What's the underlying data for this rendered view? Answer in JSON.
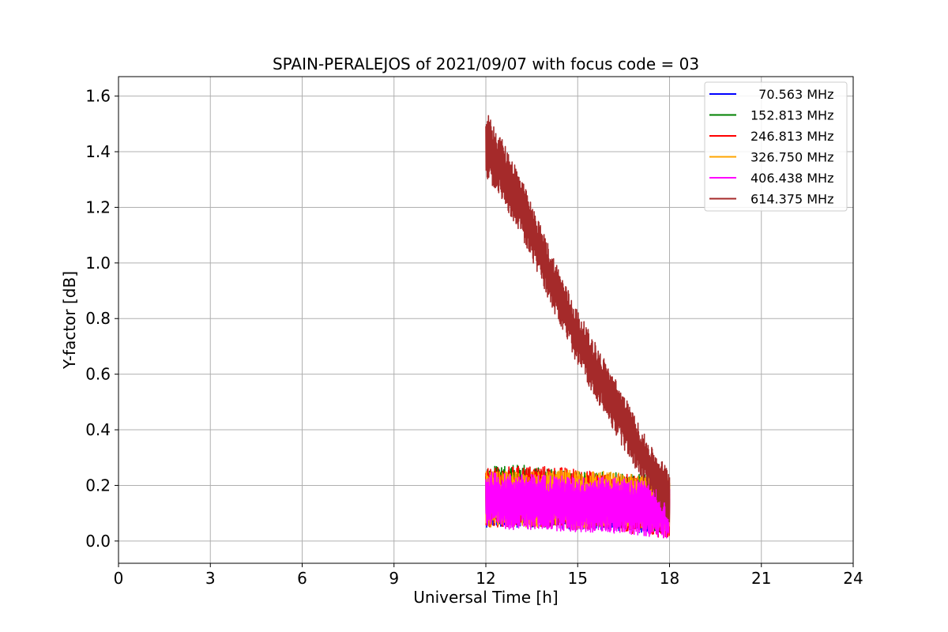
{
  "chart_data": {
    "type": "line",
    "title": "SPAIN-PERALEJOS of 2021/09/07 with focus code = 03",
    "xlabel": "Universal Time [h]",
    "ylabel": "Y-factor [dB]",
    "xlim": [
      0,
      24
    ],
    "ylim": [
      -0.08,
      1.67
    ],
    "xticks": [
      0,
      3,
      6,
      9,
      12,
      15,
      18,
      21,
      24
    ],
    "xtick_labels": [
      "0",
      "3",
      "6",
      "9",
      "12",
      "15",
      "18",
      "21",
      "24"
    ],
    "yticks": [
      0.0,
      0.2,
      0.4,
      0.6,
      0.8,
      1.0,
      1.2,
      1.4,
      1.6
    ],
    "ytick_labels": [
      "0.0",
      "0.2",
      "0.4",
      "0.6",
      "0.8",
      "1.0",
      "1.2",
      "1.4",
      "1.6"
    ],
    "grid": true,
    "legend_position": "top-right",
    "series": [
      {
        "name": "70.563 MHz",
        "legend_label": "  70.563 MHz",
        "color": "#0000ff",
        "x": [
          12.0,
          13.0,
          14.0,
          15.0,
          16.0,
          17.0,
          18.0
        ],
        "mean": [
          0.14,
          0.14,
          0.14,
          0.13,
          0.13,
          0.12,
          0.12
        ],
        "amplitude": [
          0.09,
          0.09,
          0.09,
          0.09,
          0.09,
          0.09,
          0.09
        ]
      },
      {
        "name": "152.813 MHz",
        "legend_label": "152.813 MHz",
        "color": "#008000",
        "x": [
          12.0,
          13.0,
          14.0,
          15.0,
          16.0,
          17.0,
          18.0
        ],
        "mean": [
          0.16,
          0.17,
          0.16,
          0.15,
          0.15,
          0.14,
          0.13
        ],
        "amplitude": [
          0.11,
          0.11,
          0.1,
          0.1,
          0.1,
          0.1,
          0.1
        ]
      },
      {
        "name": "246.813 MHz",
        "legend_label": "246.813 MHz",
        "color": "#ff0000",
        "x": [
          12.0,
          13.0,
          14.0,
          15.0,
          16.0,
          17.0,
          18.0
        ],
        "mean": [
          0.15,
          0.16,
          0.16,
          0.15,
          0.14,
          0.13,
          0.12
        ],
        "amplitude": [
          0.11,
          0.11,
          0.11,
          0.11,
          0.1,
          0.11,
          0.11
        ]
      },
      {
        "name": "326.750 MHz",
        "legend_label": "326.750 MHz",
        "color": "#ffa500",
        "x": [
          12.0,
          13.0,
          14.0,
          15.0,
          16.0,
          17.0,
          18.0
        ],
        "mean": [
          0.15,
          0.15,
          0.15,
          0.15,
          0.15,
          0.14,
          0.13
        ],
        "amplitude": [
          0.1,
          0.1,
          0.1,
          0.11,
          0.1,
          0.1,
          0.1
        ]
      },
      {
        "name": "406.438 MHz",
        "legend_label": "406.438 MHz",
        "color": "#ff00ff",
        "x": [
          12.0,
          13.0,
          14.0,
          15.0,
          16.0,
          17.0,
          18.0
        ],
        "mean": [
          0.15,
          0.14,
          0.14,
          0.13,
          0.13,
          0.12,
          0.11
        ],
        "amplitude": [
          0.1,
          0.1,
          0.1,
          0.1,
          0.1,
          0.1,
          0.1
        ]
      },
      {
        "name": "614.375 MHz",
        "legend_label": "614.375 MHz",
        "color": "#a52a2a",
        "x": [
          12.0,
          12.5,
          13.0,
          13.5,
          14.0,
          14.5,
          15.0,
          15.5,
          16.0,
          16.5,
          17.0,
          17.5,
          18.0
        ],
        "mean": [
          1.43,
          1.34,
          1.24,
          1.11,
          0.98,
          0.85,
          0.73,
          0.63,
          0.53,
          0.43,
          0.33,
          0.24,
          0.16
        ],
        "amplitude": [
          0.12,
          0.11,
          0.11,
          0.1,
          0.1,
          0.1,
          0.1,
          0.1,
          0.1,
          0.1,
          0.09,
          0.08,
          0.1
        ]
      }
    ]
  }
}
